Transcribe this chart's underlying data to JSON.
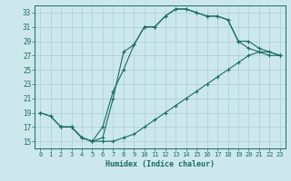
{
  "xlabel": "Humidex (Indice chaleur)",
  "bg_color": "#cce8ec",
  "grid_color": "#aacdd4",
  "line_color": "#1a6b60",
  "xlim": [
    -0.5,
    23.5
  ],
  "ylim": [
    14,
    34
  ],
  "xticks": [
    0,
    1,
    2,
    3,
    4,
    5,
    6,
    7,
    8,
    9,
    10,
    11,
    12,
    13,
    14,
    15,
    16,
    17,
    18,
    19,
    20,
    21,
    22,
    23
  ],
  "yticks": [
    15,
    17,
    19,
    21,
    23,
    25,
    27,
    29,
    31,
    33
  ],
  "line1_x": [
    0,
    1,
    2,
    3,
    4,
    5,
    6,
    7,
    8,
    9,
    10,
    11,
    12,
    13,
    14,
    15,
    16,
    17,
    18,
    19,
    20,
    21,
    22,
    23
  ],
  "line1_y": [
    19,
    18.5,
    17,
    17,
    15.5,
    15,
    15.5,
    21,
    27.5,
    28.5,
    31,
    31,
    32.5,
    33.5,
    33.5,
    33,
    32.5,
    32.5,
    32,
    29,
    28,
    27.5,
    27,
    27
  ],
  "line2_x": [
    0,
    1,
    2,
    3,
    4,
    5,
    6,
    7,
    8,
    9,
    10,
    11,
    12,
    13,
    14,
    15,
    16,
    17,
    18,
    19,
    20,
    21,
    22,
    23
  ],
  "line2_y": [
    19,
    18.5,
    17,
    17,
    15.5,
    15,
    15,
    15,
    15.5,
    16,
    17,
    18,
    19,
    20,
    21,
    22,
    23,
    24,
    25,
    26,
    27,
    27.5,
    27.5,
    27
  ],
  "line3_x": [
    2,
    3,
    4,
    5,
    6,
    7,
    8,
    9,
    10,
    11,
    12,
    13,
    14,
    15,
    16,
    17,
    18,
    19,
    20,
    21,
    22,
    23
  ],
  "line3_y": [
    17,
    17,
    15.5,
    15,
    17,
    22,
    25,
    28.5,
    31,
    31,
    32.5,
    33.5,
    33.5,
    33,
    32.5,
    32.5,
    32,
    29,
    29,
    28,
    27.5,
    27
  ]
}
